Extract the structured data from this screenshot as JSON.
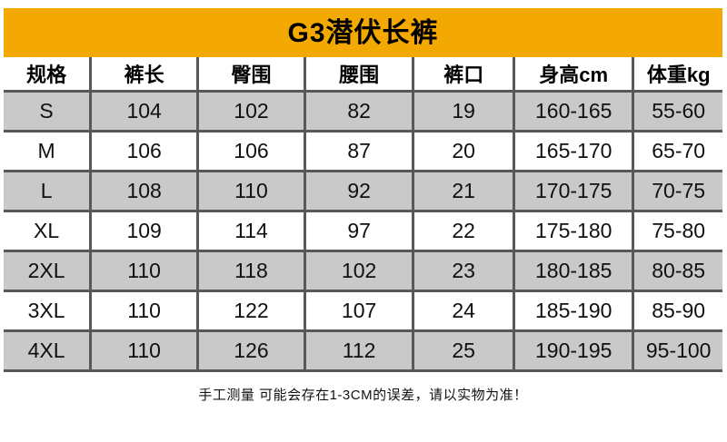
{
  "title": "G3潜伏长裤",
  "table": {
    "columns": [
      "规格",
      "裤长",
      "臀围",
      "腰围",
      "裤口",
      "身高cm",
      "体重kg"
    ],
    "rows": [
      [
        "S",
        "104",
        "102",
        "82",
        "19",
        "160-165",
        "55-60"
      ],
      [
        "M",
        "106",
        "106",
        "87",
        "20",
        "165-170",
        "65-70"
      ],
      [
        "L",
        "108",
        "110",
        "92",
        "21",
        "170-175",
        "70-75"
      ],
      [
        "XL",
        "109",
        "114",
        "97",
        "22",
        "175-180",
        "75-80"
      ],
      [
        "2XL",
        "110",
        "118",
        "102",
        "23",
        "180-185",
        "80-85"
      ],
      [
        "3XL",
        "110",
        "122",
        "107",
        "24",
        "185-190",
        "85-90"
      ],
      [
        "4XL",
        "110",
        "126",
        "112",
        "25",
        "190-195",
        "95-100"
      ]
    ]
  },
  "footer_note": "手工测量 可能会存在1-3CM的误差，请以实物为准！",
  "colors": {
    "banner": "#F4A802",
    "alt_row": "#C9C9C9",
    "border": "#58585A",
    "title_text": "#000000"
  }
}
